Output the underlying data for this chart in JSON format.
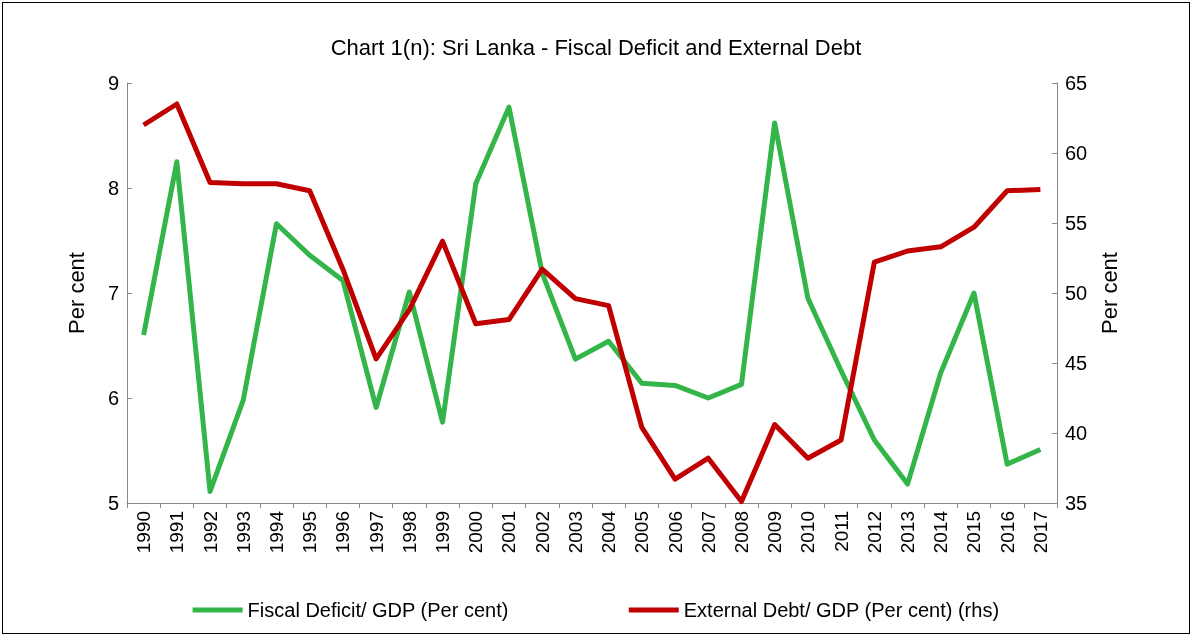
{
  "chart_data": {
    "type": "line",
    "title": "Chart 1(n): Sri Lanka - Fiscal Deficit and External Debt",
    "ylabel": "Per cent",
    "y2label": "Per cent",
    "categories": [
      "1990",
      "1991",
      "1992",
      "1993",
      "1994",
      "1995",
      "1996",
      "1997",
      "1998",
      "1999",
      "2000",
      "2001",
      "2002",
      "2003",
      "2004",
      "2005",
      "2006",
      "2007",
      "2008",
      "2009",
      "2010",
      "2011",
      "2012",
      "2013",
      "2014",
      "2015",
      "2016",
      "2017"
    ],
    "series": [
      {
        "name": "Fiscal Deficit/ GDP (Per cent)",
        "color": "#33b54a",
        "values": [
          6.6,
          8.25,
          5.11,
          5.98,
          7.66,
          7.36,
          7.12,
          5.91,
          7.01,
          5.77,
          8.04,
          8.77,
          7.19,
          6.37,
          6.54,
          6.14,
          6.12,
          6.0,
          6.13,
          8.62,
          6.95,
          6.26,
          5.6,
          5.18,
          6.24,
          7.0,
          5.37,
          5.51
        ]
      },
      {
        "name": "External Debt/ GDP (Per cent) (rhs)",
        "color": "#c00000",
        "axis": "y2",
        "values": [
          62.0,
          63.5,
          57.9,
          57.8,
          57.8,
          57.3,
          51.7,
          45.3,
          48.8,
          53.7,
          47.8,
          48.1,
          51.7,
          49.6,
          49.1,
          40.4,
          36.7,
          38.2,
          35.1,
          40.6,
          38.2,
          39.5,
          52.2,
          53.0,
          53.3,
          54.7,
          57.3,
          57.4
        ]
      }
    ],
    "ylim": [
      5,
      9
    ],
    "yticks": [
      5,
      6,
      7,
      8,
      9
    ],
    "y2lim": [
      35,
      65
    ],
    "y2ticks": [
      35,
      40,
      45,
      50,
      55,
      60,
      65
    ],
    "grid": false,
    "legend": "bottom",
    "marker": "none",
    "line_style": "solid"
  }
}
